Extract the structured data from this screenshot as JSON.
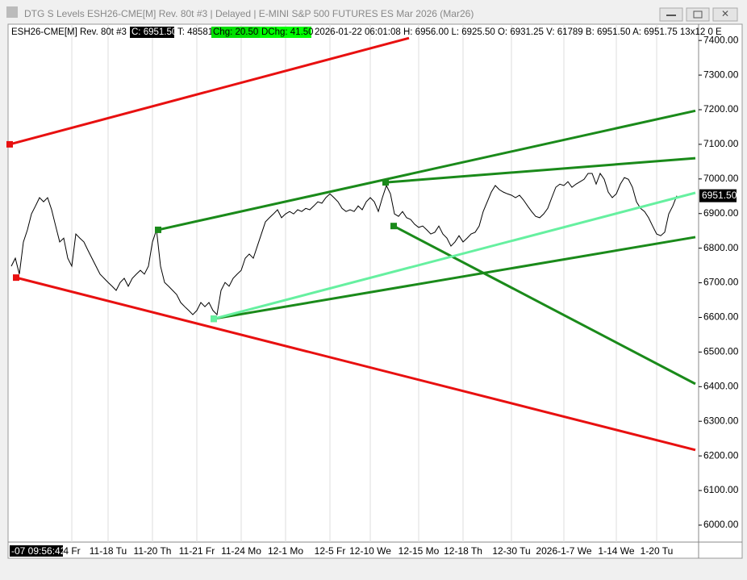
{
  "window_title": "DTG S Levels ESH26-CME[M]  Rev. 80t #3 | Delayed | E-MINI S&P 500 FUTURES ES Mar 2026 (Mar26)",
  "header": {
    "symbol": "ESH26-CME[M]  Rev. 80t #3",
    "close": "C: 6951.50",
    "trades": "T: 48581",
    "change": "Chg: 20.50",
    "day_change": "DChg: 41.50",
    "details": "2026-01-22 06:01:08 H: 6956.00  L: 6925.50  O: 6931.25  V: 61789  B: 6951.50  A: 6951.75  13x12  0  E"
  },
  "cursor_label": "-07  09:56:42",
  "last_price_label": "6951.50",
  "chart_data": {
    "type": "line",
    "categories": [
      null,
      null,
      null,
      null,
      null,
      null,
      null,
      null,
      null,
      null,
      null,
      null,
      null,
      null,
      null,
      "4 Fr",
      null,
      null,
      null,
      null,
      null,
      null,
      null,
      null,
      "11-18 Tu",
      null,
      null,
      null,
      null,
      null,
      null,
      null,
      null,
      null,
      null,
      "11-20 Th",
      null,
      null,
      null,
      null,
      null,
      null,
      null,
      null,
      null,
      null,
      "11-21 Fr",
      null,
      null,
      null,
      null,
      null,
      null,
      null,
      null,
      null,
      null,
      "11-24 Mo",
      null,
      null,
      null,
      null,
      null,
      null,
      null,
      null,
      null,
      null,
      "12-1 Mo",
      null,
      null,
      null,
      null,
      null,
      null,
      null,
      null,
      null,
      null,
      "12-5 Fr",
      null,
      null,
      null,
      null,
      null,
      null,
      null,
      null,
      null,
      "12-10 We",
      null,
      null,
      null,
      null,
      null,
      null,
      null,
      null,
      null,
      null,
      null,
      "12-15 Mo",
      null,
      null,
      null,
      null,
      null,
      null,
      null,
      null,
      null,
      null,
      "12-18 Th",
      null,
      null,
      null,
      null,
      null,
      null,
      null,
      null,
      null,
      null,
      null,
      "12-30 Tu",
      null,
      null,
      null,
      null,
      null,
      null,
      null,
      null,
      null,
      null,
      null,
      null,
      "2026-1-7 We",
      null,
      null,
      null,
      null,
      null,
      null,
      null,
      null,
      null,
      null,
      null,
      null,
      "1-14 We",
      null,
      null,
      null,
      null,
      null,
      null,
      null,
      null,
      null,
      "1-20 Tu",
      null,
      null,
      null,
      null,
      null
    ],
    "series": [
      {
        "color": "#000000",
        "values": [
          6748,
          6771,
          6725,
          6818,
          6853,
          6899,
          6922,
          6946,
          6934,
          6946,
          6911,
          6864,
          6818,
          6829,
          6771,
          6748,
          6841,
          6829,
          6818,
          6794,
          6771,
          6748,
          6725,
          6713,
          6701,
          6690,
          6678,
          6701,
          6713,
          6690,
          6713,
          6725,
          6736,
          6725,
          6748,
          6818,
          6853,
          6748,
          6701,
          6690,
          6678,
          6666,
          6643,
          6631,
          6620,
          6608,
          6620,
          6643,
          6631,
          6643,
          6620,
          6608,
          6678,
          6701,
          6690,
          6713,
          6725,
          6736,
          6771,
          6783,
          6771,
          6806,
          6841,
          6876,
          6888,
          6899,
          6911,
          6888,
          6899,
          6906,
          6899,
          6911,
          6906,
          6915,
          6911,
          6922,
          6934,
          6930,
          6946,
          6957,
          6946,
          6934,
          6915,
          6906,
          6911,
          6906,
          6922,
          6911,
          6934,
          6946,
          6934,
          6906,
          6946,
          6981,
          6957,
          6899,
          6892,
          6906,
          6888,
          6883,
          6869,
          6860,
          6864,
          6853,
          6841,
          6846,
          6864,
          6841,
          6829,
          6806,
          6818,
          6836,
          6818,
          6829,
          6841,
          6846,
          6864,
          6906,
          6934,
          6962,
          6981,
          6969,
          6962,
          6957,
          6953,
          6946,
          6953,
          6939,
          6922,
          6906,
          6892,
          6888,
          6899,
          6915,
          6946,
          6976,
          6985,
          6981,
          6992,
          6976,
          6985,
          6992,
          6999,
          7016,
          7016,
          6985,
          7016,
          6999,
          6962,
          6946,
          6957,
          6985,
          7004,
          6999,
          6976,
          6934,
          6915,
          6906,
          6888,
          6864,
          6841,
          6836,
          6846,
          6899,
          6922,
          6951.5
        ]
      }
    ],
    "lines": [
      {
        "color": "#e81010",
        "x": [
          -0.4,
          98.6
        ],
        "values": [
          7100,
          7407
        ]
      },
      {
        "color": "#e81010",
        "x": [
          1.2,
          169.6
        ],
        "values": [
          6715,
          6217
        ]
      },
      {
        "color": "#1a8a1a",
        "x": [
          36.4,
          169.6
        ],
        "values": [
          6853,
          7197
        ]
      },
      {
        "color": "#1a8a1a",
        "x": [
          92.8,
          169.6
        ],
        "values": [
          6990,
          7060
        ]
      },
      {
        "color": "#1a8a1a",
        "x": [
          94.8,
          169.6
        ],
        "values": [
          6864,
          6408
        ]
      },
      {
        "color": "#1a8a1a",
        "x": [
          50.2,
          169.6
        ],
        "values": [
          6596,
          6832
        ]
      },
      {
        "color": "#66f0a0",
        "x": [
          50.2,
          169.6
        ],
        "values": [
          6596,
          6960
        ]
      }
    ],
    "ylim": [
      5951,
      7447
    ],
    "yticks": [
      {
        "value": 6000,
        "label": "6000.00"
      },
      {
        "value": 6100,
        "label": "6100.00"
      },
      {
        "value": 6200,
        "label": "6200.00"
      },
      {
        "value": 6300,
        "label": "6300.00"
      },
      {
        "value": 6400,
        "label": "6400.00"
      },
      {
        "value": 6500,
        "label": "6500.00"
      },
      {
        "value": 6600,
        "label": "6600.00"
      },
      {
        "value": 6700,
        "label": "6700.00"
      },
      {
        "value": 6800,
        "label": "6800.00"
      },
      {
        "value": 6900,
        "label": "6900.00"
      },
      {
        "value": 7000,
        "label": "7000.00"
      },
      {
        "value": 7100,
        "label": "7100.00"
      },
      {
        "value": 7200,
        "label": "7200.00"
      },
      {
        "value": 7300,
        "label": "7300.00"
      },
      {
        "value": 7400,
        "label": "7400.00"
      }
    ]
  }
}
